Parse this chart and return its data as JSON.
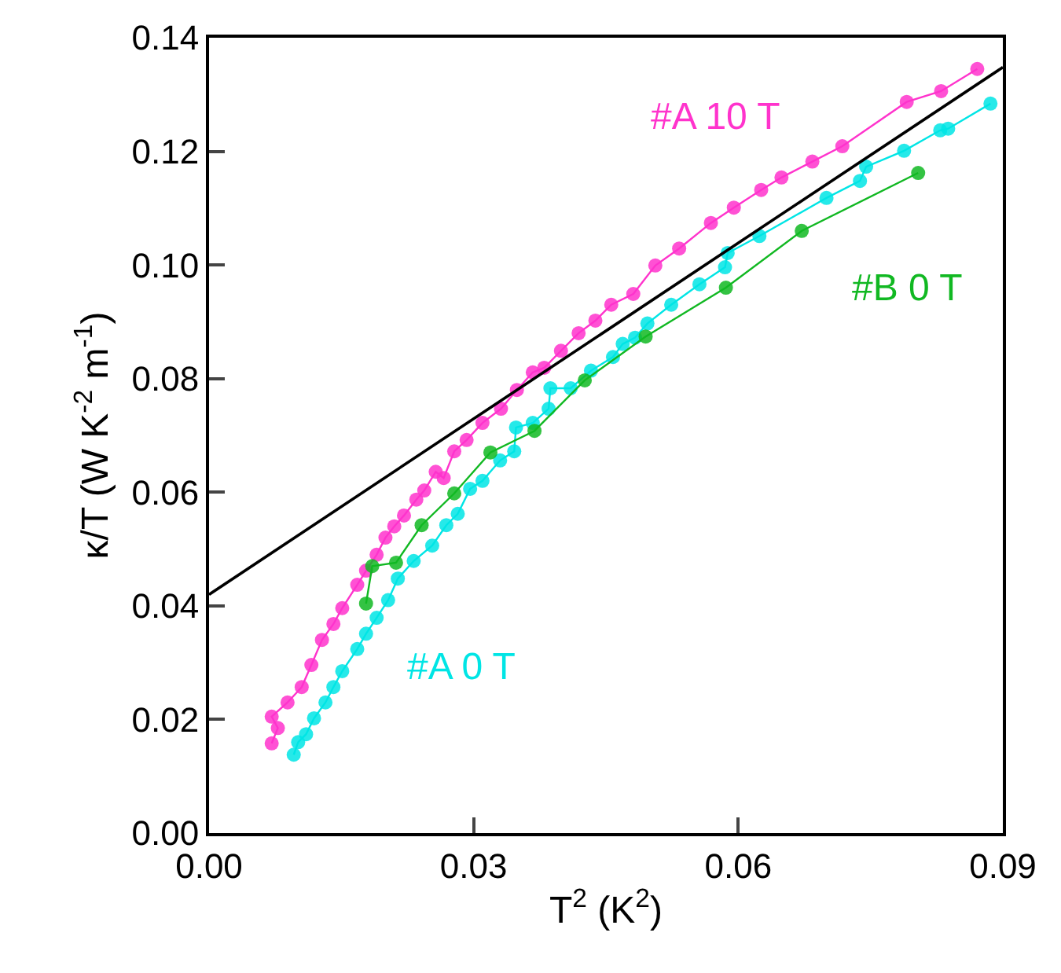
{
  "chart_data": {
    "type": "line",
    "xlabel": "T$^{2}$ (K$^{2}$)",
    "ylabel": "κ/T (W K$^{-2}$ m$^{-1}$)",
    "xlim": [
      0,
      0.09
    ],
    "xticks": [
      {
        "value": 0,
        "label": "0.00"
      },
      {
        "value": 0.03,
        "label": "0.03"
      },
      {
        "value": 0.06,
        "label": "0.06"
      },
      {
        "value": 0.09,
        "label": "0.09"
      }
    ],
    "ylim": [
      0,
      0.14
    ],
    "yticks": [
      {
        "value": 0,
        "label": "0.00"
      },
      {
        "value": 0.02,
        "label": "0.02"
      },
      {
        "value": 0.04,
        "label": "0.04"
      },
      {
        "value": 0.06,
        "label": "0.06"
      },
      {
        "value": 0.08,
        "label": "0.08"
      },
      {
        "value": 0.1,
        "label": "0.10"
      },
      {
        "value": 0.12,
        "label": "0.12"
      },
      {
        "value": 0.14,
        "label": "0.14"
      }
    ],
    "legend": false,
    "marker": "circle",
    "series": [
      {
        "name": "#A 10 T",
        "color": "#ff33cc",
        "x": [
          0.0071,
          0.0078,
          0.0071,
          0.0089,
          0.0105,
          0.0116,
          0.0128,
          0.0141,
          0.0151,
          0.0168,
          0.0178,
          0.019,
          0.02,
          0.021,
          0.0221,
          0.0235,
          0.0244,
          0.0257,
          0.0266,
          0.0278,
          0.0292,
          0.031,
          0.0331,
          0.0349,
          0.0367,
          0.038,
          0.0399,
          0.0419,
          0.0438,
          0.0456,
          0.0481,
          0.0506,
          0.0533,
          0.0569,
          0.0595,
          0.0626,
          0.0649,
          0.0684,
          0.0718,
          0.0791,
          0.083,
          0.0871
        ],
        "values": [
          0.0158,
          0.0185,
          0.0205,
          0.023,
          0.0257,
          0.0296,
          0.034,
          0.0368,
          0.0396,
          0.0437,
          0.0462,
          0.049,
          0.052,
          0.054,
          0.0559,
          0.0587,
          0.0603,
          0.0636,
          0.0625,
          0.0672,
          0.0692,
          0.0722,
          0.0747,
          0.078,
          0.0811,
          0.0819,
          0.0849,
          0.088,
          0.0902,
          0.093,
          0.0949,
          0.0999,
          0.1029,
          0.1074,
          0.1101,
          0.1132,
          0.1154,
          0.1182,
          0.1209,
          0.1287,
          0.1306,
          0.1345
        ]
      },
      {
        "name": "#A 0 T",
        "color": "#00e5e5",
        "x": [
          0.0096,
          0.0101,
          0.011,
          0.0119,
          0.0132,
          0.0141,
          0.0151,
          0.0168,
          0.0178,
          0.019,
          0.0203,
          0.0214,
          0.0232,
          0.0253,
          0.0269,
          0.0282,
          0.0296,
          0.031,
          0.033,
          0.0346,
          0.0348,
          0.0367,
          0.0385,
          0.0387,
          0.041,
          0.0433,
          0.0458,
          0.0469,
          0.0483,
          0.0497,
          0.0524,
          0.0556,
          0.0585,
          0.0588,
          0.0624,
          0.07,
          0.0738,
          0.0745,
          0.0788,
          0.0829,
          0.0838,
          0.0886
        ],
        "values": [
          0.0138,
          0.016,
          0.0174,
          0.0202,
          0.023,
          0.0257,
          0.0285,
          0.0324,
          0.0351,
          0.0379,
          0.041,
          0.0448,
          0.0479,
          0.0506,
          0.0542,
          0.0562,
          0.0606,
          0.062,
          0.0656,
          0.0672,
          0.0714,
          0.0722,
          0.0747,
          0.0783,
          0.0783,
          0.0814,
          0.0838,
          0.0861,
          0.0872,
          0.0897,
          0.093,
          0.0966,
          0.0996,
          0.1021,
          0.1051,
          0.1118,
          0.1148,
          0.1173,
          0.1201,
          0.1237,
          0.124,
          0.1284
        ]
      },
      {
        "name": "#B 0 T",
        "color": "#11b822",
        "x": [
          0.0178,
          0.0185,
          0.0212,
          0.0241,
          0.0278,
          0.0319,
          0.0369,
          0.0426,
          0.0495,
          0.0586,
          0.0672,
          0.0804
        ],
        "values": [
          0.0404,
          0.047,
          0.0476,
          0.0542,
          0.0598,
          0.067,
          0.0708,
          0.0797,
          0.0874,
          0.096,
          0.106,
          0.1162
        ]
      },
      {
        "type": "line",
        "color": "#000000",
        "marker": "none",
        "x": [
          0,
          0.09
        ],
        "values": [
          0.042,
          0.1348
        ]
      }
    ]
  }
}
